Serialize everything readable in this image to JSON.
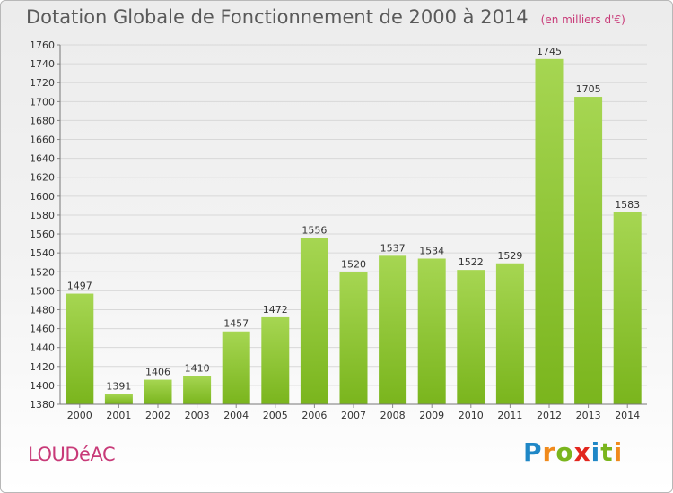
{
  "header": {
    "title": "Dotation Globale de Fonctionnement de 2000 à 2014",
    "unit": "(en milliers d'€)"
  },
  "footer": {
    "place": "LOUDéAC",
    "logo": [
      "P",
      "r",
      "o",
      "x",
      "i",
      "t",
      "i"
    ],
    "logo_colors": [
      "#1f87c6",
      "#f08a1c",
      "#7ab51d",
      "#e2261d",
      "#1f87c6",
      "#7ab51d",
      "#f08a1c"
    ]
  },
  "chart_data": {
    "type": "bar",
    "title": "Dotation Globale de Fonctionnement de 2000 à 2014",
    "subtitle": "(en milliers d'€)",
    "categories": [
      "2000",
      "2001",
      "2002",
      "2003",
      "2004",
      "2005",
      "2006",
      "2007",
      "2008",
      "2009",
      "2010",
      "2011",
      "2012",
      "2013",
      "2014"
    ],
    "values": [
      1497,
      1391,
      1406,
      1410,
      1457,
      1472,
      1556,
      1520,
      1537,
      1534,
      1522,
      1529,
      1745,
      1705,
      1583
    ],
    "ylim": [
      1380,
      1760
    ],
    "yticks": [
      1380,
      1400,
      1420,
      1440,
      1460,
      1480,
      1500,
      1520,
      1540,
      1560,
      1580,
      1600,
      1620,
      1640,
      1660,
      1680,
      1700,
      1720,
      1740,
      1760
    ],
    "grid": true,
    "bar_color": "#7ab51d",
    "bar_color_light": "#a6d652",
    "label_color": "#333333",
    "grid_color": "#d8d8d8"
  }
}
